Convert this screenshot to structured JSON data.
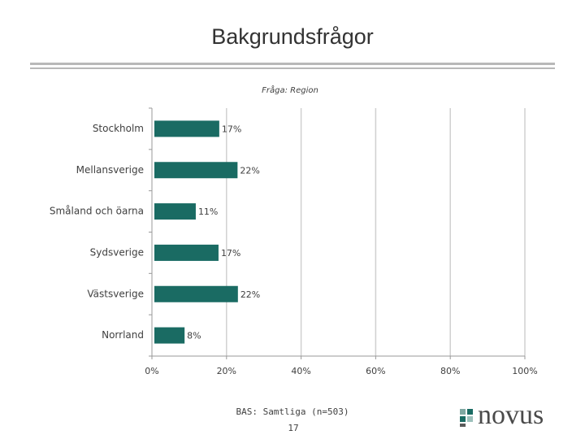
{
  "chart_data": {
    "type": "bar",
    "orientation": "horizontal",
    "title": "Bakgrundsfrågor",
    "subtitle": "Fråga: Region",
    "categories": [
      "Stockholm",
      "Mellansverige",
      "Småland och öarna",
      "Sydsverige",
      "Västsverige",
      "Norrland"
    ],
    "values": [
      17.4,
      22.3,
      11.1,
      17.2,
      22.4,
      8.1
    ],
    "value_labels": [
      "17%",
      "22%",
      "11%",
      "17%",
      "22%",
      "8%"
    ],
    "color": "#1a6b63",
    "xlim": [
      0,
      100
    ],
    "xticks": [
      {
        "value": 0,
        "label": "0%"
      },
      {
        "value": 20,
        "label": "20%"
      },
      {
        "value": 40,
        "label": "40%"
      },
      {
        "value": 60,
        "label": "60%"
      },
      {
        "value": 80,
        "label": "80%"
      },
      {
        "value": 100,
        "label": "100%"
      }
    ],
    "grid": true,
    "annotations": [
      "BAS: Samtliga (n=503)",
      "17",
      "novus"
    ]
  }
}
